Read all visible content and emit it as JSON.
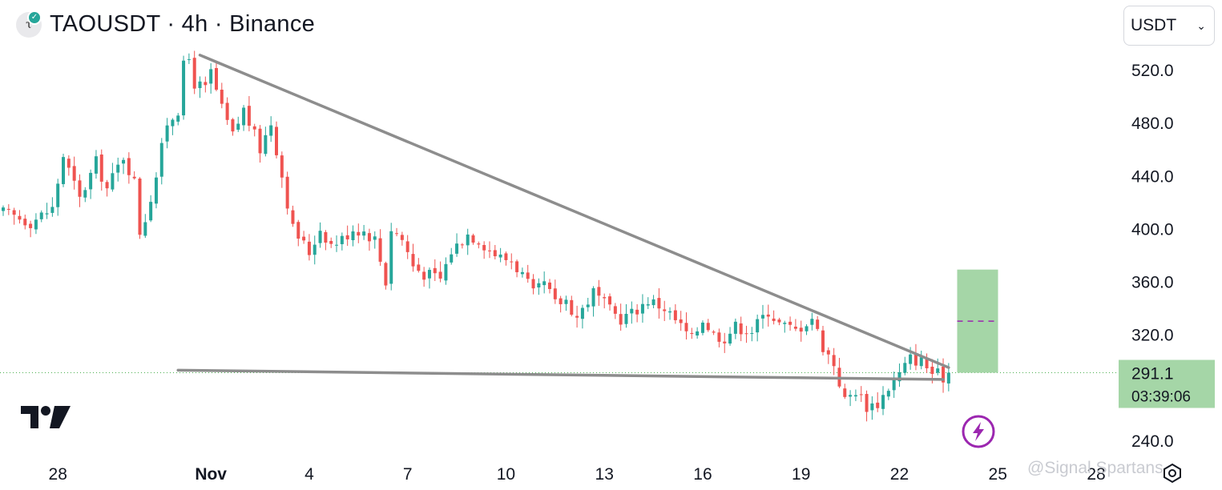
{
  "header": {
    "title": "TAOUSDT · 4h · Binance",
    "logo_letter": "τ"
  },
  "currency_select": {
    "value": "USDT"
  },
  "price_label": {
    "price": "291.1",
    "countdown": "03:39:06"
  },
  "watermark": "@Signal Spartans",
  "icons": {
    "flash": "lightning-bolt-icon",
    "tradingview_logo": "tradingview-logo",
    "settings": "settings-icon",
    "dropdown": "chevron-down-icon"
  },
  "colors": {
    "up": "#26a69a",
    "down": "#ef5350",
    "trendline": "#8d8d8d",
    "target_box": "#a5d6a7",
    "target_line": "#9c27b0",
    "current_price_line": "#4caf50",
    "axis_text": "#131722"
  },
  "chart_data": {
    "type": "candlestick",
    "interval": "4h",
    "y_ticks": [
      520.0,
      480.0,
      440.0,
      400.0,
      360.0,
      320.0,
      240.0
    ],
    "x_ticks": [
      {
        "label": "28",
        "index": 10
      },
      {
        "label": "Nov",
        "index": 38
      },
      {
        "label": "4",
        "index": 56
      },
      {
        "label": "7",
        "index": 74
      },
      {
        "label": "10",
        "index": 92
      },
      {
        "label": "13",
        "index": 110
      },
      {
        "label": "16",
        "index": 128
      },
      {
        "label": "19",
        "index": 146
      },
      {
        "label": "22",
        "index": 164
      },
      {
        "label": "25",
        "index": 182
      },
      {
        "label": "28",
        "index": 200
      }
    ],
    "current_price": 291.1,
    "anchors": [
      [
        0,
        412
      ],
      [
        5,
        405
      ],
      [
        9,
        415
      ],
      [
        11,
        455
      ],
      [
        14,
        422
      ],
      [
        17,
        450
      ],
      [
        19,
        430
      ],
      [
        22,
        455
      ],
      [
        24,
        435
      ],
      [
        25,
        398
      ],
      [
        26,
        408
      ],
      [
        28,
        440
      ],
      [
        30,
        480
      ],
      [
        32,
        490
      ],
      [
        33,
        522
      ],
      [
        34,
        528
      ],
      [
        35,
        510
      ],
      [
        37,
        505
      ],
      [
        38,
        518
      ],
      [
        40,
        490
      ],
      [
        42,
        470
      ],
      [
        44,
        490
      ],
      [
        47,
        460
      ],
      [
        49,
        480
      ],
      [
        51,
        440
      ],
      [
        53,
        400
      ],
      [
        56,
        382
      ],
      [
        58,
        400
      ],
      [
        60,
        388
      ],
      [
        62,
        392
      ],
      [
        64,
        400
      ],
      [
        66,
        398
      ],
      [
        68,
        392
      ],
      [
        70,
        360
      ],
      [
        71,
        400
      ],
      [
        73,
        392
      ],
      [
        75,
        372
      ],
      [
        77,
        366
      ],
      [
        80,
        362
      ],
      [
        82,
        383
      ],
      [
        85,
        396
      ],
      [
        87,
        392
      ],
      [
        89,
        384
      ],
      [
        91,
        378
      ],
      [
        93,
        376
      ],
      [
        95,
        365
      ],
      [
        97,
        350
      ],
      [
        99,
        358
      ],
      [
        101,
        343
      ],
      [
        103,
        346
      ],
      [
        105,
        333
      ],
      [
        108,
        352
      ],
      [
        111,
        338
      ],
      [
        113,
        332
      ],
      [
        115,
        336
      ],
      [
        118,
        346
      ],
      [
        121,
        340
      ],
      [
        124,
        326
      ],
      [
        126,
        316
      ],
      [
        128,
        332
      ],
      [
        130,
        320
      ],
      [
        132,
        318
      ],
      [
        134,
        326
      ],
      [
        137,
        323
      ],
      [
        140,
        338
      ],
      [
        142,
        328
      ],
      [
        145,
        323
      ],
      [
        148,
        333
      ],
      [
        150,
        311
      ],
      [
        152,
        298
      ],
      [
        154,
        270
      ],
      [
        156,
        278
      ],
      [
        158,
        266
      ],
      [
        160,
        268
      ],
      [
        162,
        280
      ],
      [
        164,
        290
      ],
      [
        166,
        302
      ],
      [
        168,
        300
      ],
      [
        170,
        291
      ],
      [
        172,
        288
      ],
      [
        173,
        291
      ]
    ],
    "trendlines": [
      {
        "from": [
          36,
          531
        ],
        "to": [
          173,
          295
        ]
      },
      {
        "from": [
          32,
          293
        ],
        "to": [
          172,
          286
        ]
      }
    ],
    "target_zone": {
      "x_index": 175,
      "low": 291.1,
      "high": 369,
      "mid": 330
    },
    "ylim": [
      230,
      548
    ]
  }
}
